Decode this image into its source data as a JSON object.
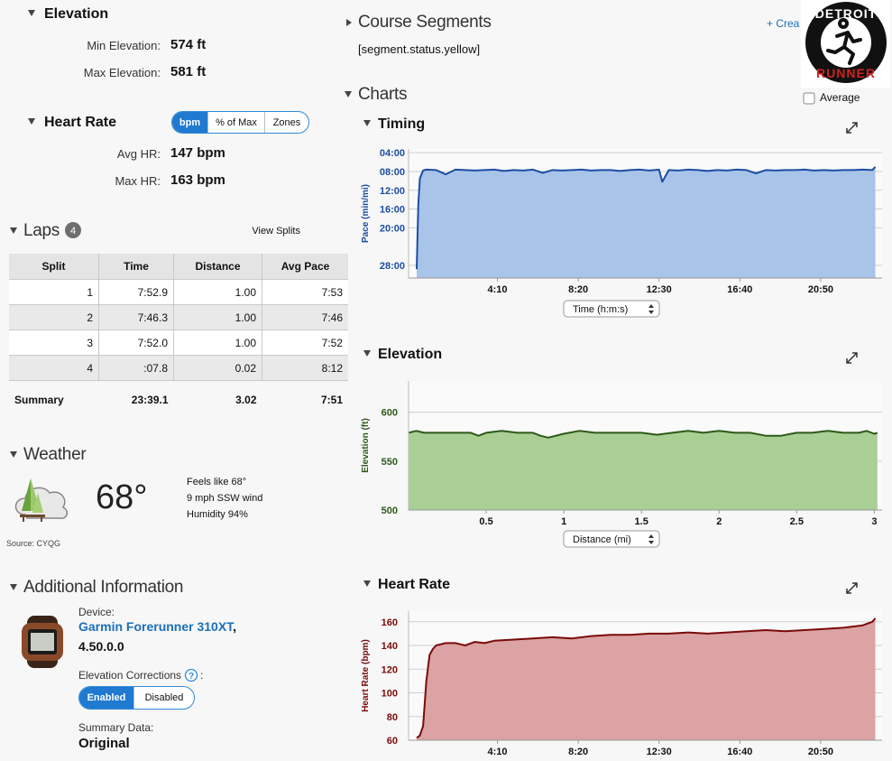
{
  "elevation": {
    "title": "Elevation",
    "min_label": "Min Elevation:",
    "min_value": "574 ft",
    "max_label": "Max Elevation:",
    "max_value": "581 ft"
  },
  "heart_rate": {
    "title": "Heart Rate",
    "tabs": [
      "bpm",
      "% of Max",
      "Zones"
    ],
    "avg_label": "Avg HR:",
    "avg_value": "147 bpm",
    "max_label": "Max HR:",
    "max_value": "163 bpm"
  },
  "laps": {
    "title": "Laps",
    "count": 4,
    "view_splits": "View Splits",
    "table": {
      "columns": [
        "Split",
        "Time",
        "Distance",
        "Avg Pace"
      ],
      "rows": [
        [
          "1",
          "7:52.9",
          "1.00",
          "7:53"
        ],
        [
          "2",
          "7:46.3",
          "1.00",
          "7:46"
        ],
        [
          "3",
          "7:52.0",
          "1.00",
          "7:52"
        ],
        [
          "4",
          ":07.8",
          "0.02",
          "8:12"
        ]
      ],
      "summary": [
        "Summary",
        "23:39.1",
        "3.02",
        "7:51"
      ]
    }
  },
  "weather": {
    "title": "Weather",
    "temperature": "68°",
    "feels_like": "Feels like 68°",
    "wind": "9 mph SSW wind",
    "humidity": "Humidity 94%",
    "source": "Source: CYQG"
  },
  "additional": {
    "title": "Additional Information",
    "device_label": "Device:",
    "device_name": "Garmin Forerunner 310XT",
    "device_separator": ",",
    "firmware": "4.50.0.0",
    "corrections_label": "Elevation Corrections",
    "help": "?",
    "corrections_colon": ":",
    "corrections_options": [
      "Enabled",
      "Disabled"
    ],
    "summary_label": "Summary Data:",
    "summary_value": "Original"
  },
  "course_segments": {
    "title": "Course Segments",
    "status": "[segment.status.yellow]",
    "create": "+ Crea"
  },
  "logo": {
    "top": "DETROIT",
    "bottom": "RUNNER"
  },
  "charts_header": {
    "title": "Charts",
    "average": "Average"
  },
  "chart_data": [
    {
      "type": "area",
      "title": "Timing",
      "y_label": "Pace (min/mi)",
      "x_selector": "Time (h:m:s)",
      "color": "#1b4ea3",
      "fill": "#a9c4e9",
      "grid": true,
      "x": [
        0,
        5,
        10,
        20,
        30,
        60,
        90,
        120,
        150,
        180,
        210,
        240,
        270,
        300,
        330,
        360,
        390,
        420,
        450,
        480,
        510,
        540,
        570,
        600,
        630,
        660,
        690,
        720,
        750,
        760,
        780,
        810,
        840,
        870,
        900,
        930,
        960,
        990,
        1020,
        1050,
        1080,
        1110,
        1140,
        1170,
        1200,
        1230,
        1260,
        1290,
        1320,
        1350,
        1380,
        1410,
        1419
      ],
      "values": [
        28.8,
        15,
        9.5,
        7.8,
        7.6,
        7.7,
        8.6,
        7.6,
        7.7,
        7.8,
        7.7,
        7.6,
        7.9,
        7.7,
        7.8,
        7.6,
        8.3,
        7.7,
        7.8,
        7.7,
        7.6,
        7.8,
        7.7,
        7.7,
        7.9,
        7.7,
        7.6,
        7.8,
        7.6,
        10.2,
        7.7,
        7.8,
        7.6,
        7.7,
        7.9,
        7.7,
        7.8,
        7.6,
        7.7,
        8.4,
        7.7,
        7.8,
        7.7,
        7.7,
        7.6,
        7.8,
        7.7,
        7.8,
        7.7,
        7.7,
        7.6,
        7.7,
        7.0
      ],
      "xlim": [
        -25,
        1440
      ],
      "ylim": [
        30.7,
        3.2
      ],
      "xticks": [
        {
          "value": 250,
          "label": "4:10"
        },
        {
          "value": 500,
          "label": "8:20"
        },
        {
          "value": 750,
          "label": "12:30"
        },
        {
          "value": 1000,
          "label": "16:40"
        },
        {
          "value": 1250,
          "label": "20:50"
        }
      ],
      "yticks": [
        {
          "value": 4,
          "label": "04:00"
        },
        {
          "value": 8,
          "label": "08:00"
        },
        {
          "value": 12,
          "label": "12:00"
        },
        {
          "value": 16,
          "label": "16:00"
        },
        {
          "value": 20,
          "label": "20:00"
        },
        {
          "value": 28,
          "label": "28:00"
        }
      ]
    },
    {
      "type": "area",
      "title": "Elevation",
      "y_label": "Elevation (ft)",
      "x_selector": "Distance (mi)",
      "color": "#2d5a18",
      "fill": "#a9cf94",
      "grid": true,
      "x": [
        0,
        0.05,
        0.1,
        0.2,
        0.3,
        0.4,
        0.45,
        0.5,
        0.6,
        0.7,
        0.8,
        0.85,
        0.9,
        1.0,
        1.1,
        1.2,
        1.3,
        1.4,
        1.5,
        1.6,
        1.7,
        1.8,
        1.9,
        2.0,
        2.1,
        2.2,
        2.3,
        2.4,
        2.5,
        2.6,
        2.7,
        2.8,
        2.9,
        2.95,
        3.0,
        3.02
      ],
      "values": [
        579,
        581,
        579,
        579,
        579,
        579,
        576,
        579,
        581,
        579,
        579,
        576,
        574,
        578,
        581,
        579,
        579,
        579,
        579,
        577,
        579,
        581,
        579,
        581,
        579,
        579,
        576,
        576,
        579,
        579,
        581,
        579,
        579,
        581,
        578,
        579
      ],
      "xlim": [
        0,
        3.05
      ],
      "ylim": [
        500,
        632
      ],
      "xticks": [
        0.5,
        1,
        1.5,
        2,
        2.5,
        3
      ],
      "yticks": [
        500,
        550,
        600
      ]
    },
    {
      "type": "area",
      "title": "Heart Rate",
      "y_label": "Heart Rate (bpm)",
      "color": "#7a0a0a",
      "fill": "#dba3a3",
      "grid": true,
      "x": [
        0,
        10,
        20,
        30,
        40,
        50,
        60,
        90,
        120,
        150,
        180,
        210,
        240,
        300,
        360,
        420,
        480,
        540,
        600,
        660,
        720,
        780,
        840,
        900,
        960,
        1020,
        1080,
        1140,
        1200,
        1260,
        1320,
        1380,
        1410,
        1419
      ],
      "values": [
        62,
        64,
        72,
        110,
        132,
        137,
        140,
        142,
        142,
        140,
        143,
        142,
        144,
        145,
        146,
        147,
        146,
        148,
        149,
        149,
        150,
        150,
        151,
        150,
        151,
        152,
        153,
        152,
        153,
        154,
        155,
        157,
        160,
        163
      ],
      "xlim": [
        -25,
        1440
      ],
      "ylim": [
        60,
        169
      ],
      "xticks": [
        {
          "value": 250,
          "label": "4:10"
        },
        {
          "value": 500,
          "label": "8:20"
        },
        {
          "value": 750,
          "label": "12:30"
        },
        {
          "value": 1000,
          "label": "16:40"
        },
        {
          "value": 1250,
          "label": "20:50"
        }
      ],
      "yticks": [
        60,
        80,
        100,
        120,
        140,
        160
      ]
    }
  ]
}
